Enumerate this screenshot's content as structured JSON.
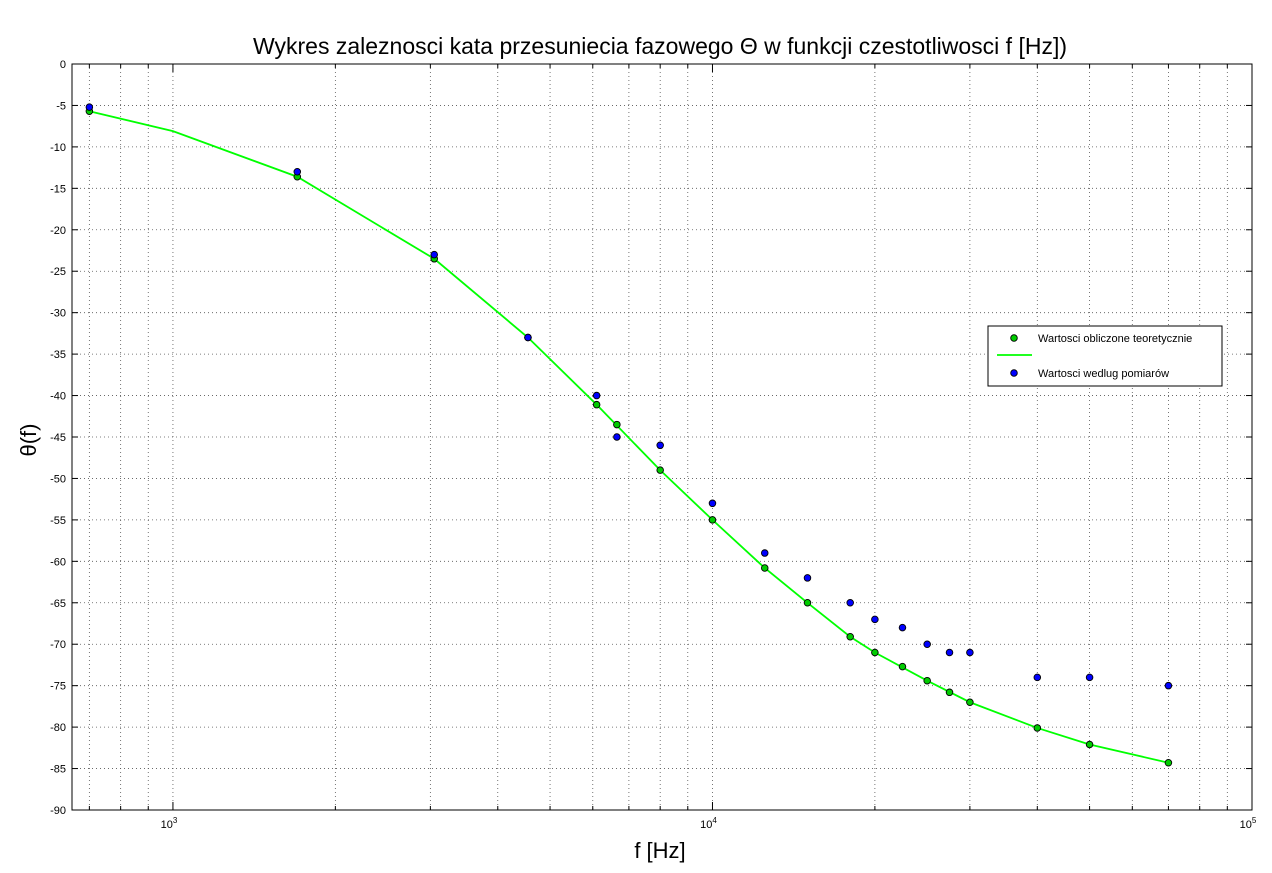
{
  "chart_data": {
    "type": "scatter",
    "title": "Wykres zaleznosci kata przesuniecia fazowego Θ w funkcji czestotliwosci f [Hz])",
    "xlabel": "f [Hz]",
    "ylabel": "θ(f)",
    "xscale": "log",
    "xlim": [
      650,
      100000
    ],
    "ylim": [
      -90,
      0
    ],
    "yticks": [
      0,
      -5,
      -10,
      -15,
      -20,
      -25,
      -30,
      -35,
      -40,
      -45,
      -50,
      -55,
      -60,
      -65,
      -70,
      -75,
      -80,
      -85,
      -90
    ],
    "xticks": [
      {
        "value": 1000,
        "base": "10",
        "exp": "3"
      },
      {
        "value": 10000,
        "base": "10",
        "exp": "4"
      },
      {
        "value": 100000,
        "base": "10",
        "exp": "5"
      }
    ],
    "grid": true,
    "legend_position": "right",
    "series": [
      {
        "name": "Wartosci obliczone teoretycznie",
        "kind": "markers",
        "color": "#00cc00",
        "x": [
          700,
          1700,
          3050,
          4550,
          6100,
          6650,
          8000,
          10000,
          12500,
          15000,
          18000,
          20000,
          22500,
          25000,
          27500,
          30000,
          40000,
          50000,
          70000
        ],
        "y": [
          -5.7,
          -13.6,
          -23.5,
          -33,
          -41.1,
          -43.5,
          -49,
          -55,
          -60.8,
          -65,
          -69.1,
          -71,
          -72.7,
          -74.4,
          -75.8,
          -77,
          -80.1,
          -82.1,
          -84.3
        ]
      },
      {
        "name": "",
        "kind": "line",
        "color": "#00ff00",
        "x": [
          700,
          1000,
          1700,
          3050,
          4550,
          6100,
          8000,
          10000,
          12500,
          15000,
          18000,
          20000,
          25000,
          30000,
          40000,
          50000,
          70000
        ],
        "y": [
          -5.7,
          -8.1,
          -13.6,
          -23.5,
          -33,
          -41.1,
          -49,
          -55,
          -60.8,
          -65,
          -69.1,
          -71,
          -74.4,
          -77,
          -80.1,
          -82.1,
          -84.3
        ]
      },
      {
        "name": "Wartosci wedlug pomiarów",
        "kind": "markers",
        "color": "#0000ff",
        "x": [
          700,
          1700,
          3050,
          4550,
          6100,
          6650,
          8000,
          10000,
          12500,
          15000,
          18000,
          20000,
          22500,
          25000,
          27500,
          30000,
          40000,
          50000,
          70000
        ],
        "y": [
          -5.2,
          -13,
          -23,
          -33,
          -40,
          -45,
          -46,
          -53,
          -59,
          -62,
          -65,
          -67,
          -68,
          -70,
          -71,
          -71,
          -74,
          -74,
          -75
        ]
      }
    ]
  }
}
